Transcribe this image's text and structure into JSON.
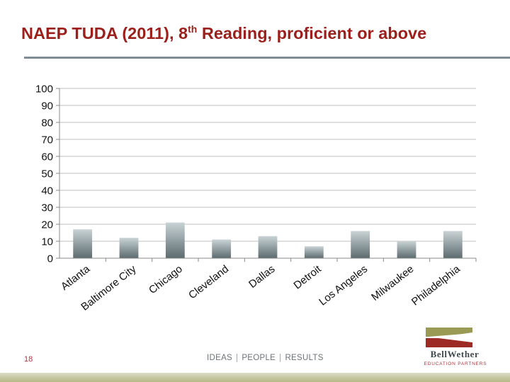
{
  "slide": {
    "title_main": "NAEP TUDA (2011), 8",
    "title_sup": "th",
    "title_tail": " Reading, proficient or above",
    "page_number": "18"
  },
  "footer": {
    "tagline": [
      "IDEAS",
      "PEOPLE",
      "RESULTS"
    ],
    "separator": "|"
  },
  "logo": {
    "name": "BellWether",
    "subtitle": "EDUCATION PARTNERS"
  },
  "colors": {
    "title": "#9b1f1a",
    "bar_top": "#c7d1d3",
    "bar_bottom": "#5c6b6f",
    "axis": "#8a8a8a",
    "grid": "#bfbfbf"
  },
  "chart_data": {
    "type": "bar",
    "categories": [
      "Atlanta",
      "Baltimore City",
      "Chicago",
      "Cleveland",
      "Dallas",
      "Detroit",
      "Los Angeles",
      "Milwaukee",
      "Philadelphia"
    ],
    "values": [
      17,
      12,
      21,
      11,
      13,
      7,
      16,
      10,
      16
    ],
    "ylim": [
      0,
      100
    ],
    "yticks": [
      "0",
      "10",
      "20",
      "30",
      "40",
      "50",
      "60",
      "70",
      "80",
      "90",
      "100"
    ],
    "grid": true,
    "legend": "none"
  }
}
